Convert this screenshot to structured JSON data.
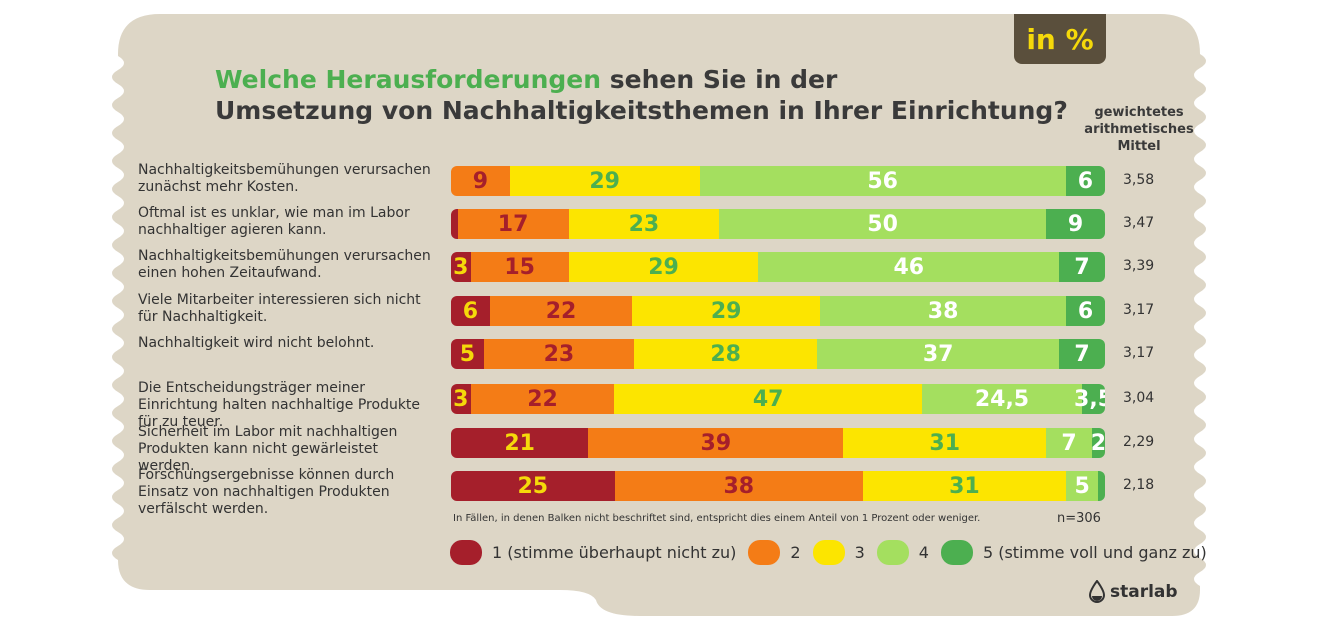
{
  "title_highlight": "Welche Herausforderungen",
  "title_rest1": " sehen Sie in der",
  "title_line2": "Umsetzung von Nachhaltigkeitsthemen in Ihrer Einrichtung?",
  "unit_badge": "in %",
  "mean_header": "gewichtetes arithmetisches Mittel",
  "footnote": "In Fällen, in denen Balken nicht beschriftet sind, entspricht dies einem Anteil von 1 Prozent oder weniger.",
  "sample": "n=306",
  "brand": "starlab",
  "colors": {
    "c1": "#a51f2b",
    "c2": "#f47c16",
    "c3": "#fce500",
    "c4": "#a4df5f",
    "c5": "#4caf50",
    "background": "#ddd6c6",
    "title_accent": "#4caf50"
  },
  "chart_data": {
    "type": "bar",
    "stacked": true,
    "orientation": "horizontal",
    "unit": "%",
    "categories": [
      "Nachhaltigkeitsbemühungen verursachen zunächst mehr Kosten.",
      "Oftmal ist es unklar, wie man im Labor nachhaltiger agieren kann.",
      "Nachhaltigkeitsbemühungen verursachen einen hohen Zeitaufwand.",
      "Viele Mitarbeiter interessieren sich nicht für Nachhaltigkeit.",
      "Nachhaltigkeit wird nicht belohnt.",
      "Die Entscheidungsträger meiner Einrichtung halten nachhaltige Produkte für zu teuer.",
      "Sicherheit im Labor mit nachhaltigen Produkten kann nicht gewärleistet werden.",
      "Forschungsergebnisse können durch Einsatz von nachhaltigen Produkten verfälscht werden."
    ],
    "series": [
      {
        "name": "1 (stimme überhaupt nicht zu)",
        "values": [
          0,
          1,
          3,
          6,
          5,
          3,
          21,
          25
        ],
        "labels": [
          "",
          "",
          "3",
          "6",
          "5",
          "3",
          "21",
          "25"
        ]
      },
      {
        "name": "2",
        "values": [
          9,
          17,
          15,
          22,
          23,
          22,
          39,
          38
        ],
        "labels": [
          "9",
          "17",
          "15",
          "22",
          "23",
          "22",
          "39",
          "38"
        ]
      },
      {
        "name": "3",
        "values": [
          29,
          23,
          29,
          29,
          28,
          47,
          31,
          31
        ],
        "labels": [
          "29",
          "23",
          "29",
          "29",
          "28",
          "47",
          "31",
          "31"
        ]
      },
      {
        "name": "4",
        "values": [
          56,
          50,
          46,
          38,
          37,
          24.5,
          7,
          5
        ],
        "labels": [
          "56",
          "50",
          "46",
          "38",
          "37",
          "24,5",
          "7",
          "5"
        ]
      },
      {
        "name": "5 (stimme voll und ganz zu)",
        "values": [
          6,
          9,
          7,
          6,
          7,
          3.5,
          2,
          1
        ],
        "labels": [
          "6",
          "9",
          "7",
          "6",
          "7",
          "3,5",
          "2",
          ""
        ]
      }
    ],
    "means": [
      "3,58",
      "3,47",
      "3,39",
      "3,17",
      "3,17",
      "3,04",
      "2,29",
      "2,18"
    ],
    "legend_position": "bottom",
    "grid": false
  }
}
